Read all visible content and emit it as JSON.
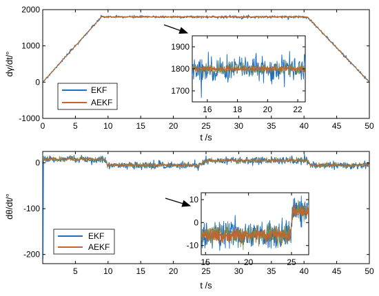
{
  "colors": {
    "ekf": "#1f6fc0",
    "aekf": "#c8612a",
    "noise_band": "#7a8a48",
    "axis": "#000000"
  },
  "chart_data": [
    {
      "type": "line",
      "ylabel": "dγ/dt/°",
      "xlabel": "t /s",
      "xlim": [
        0,
        50
      ],
      "ylim": [
        -1000,
        2000
      ],
      "xticks": [
        0,
        5,
        10,
        15,
        20,
        25,
        30,
        35,
        40,
        45,
        50
      ],
      "yticks": [
        -1000,
        0,
        1000,
        2000
      ],
      "grid": false,
      "legend_position": "bottom-left",
      "series": [
        {
          "name": "EKF",
          "x": [
            0,
            9,
            40.5,
            50
          ],
          "y": [
            0,
            1800,
            1800,
            0
          ],
          "noise_sd": 18
        },
        {
          "name": "AEKF",
          "x": [
            0,
            9,
            40.5,
            50
          ],
          "y": [
            0,
            1800,
            1800,
            0
          ],
          "noise_sd": 6
        }
      ],
      "inset": {
        "xlim": [
          15,
          22.5
        ],
        "ylim": [
          1650,
          1950
        ],
        "xticks": [
          16,
          18,
          20,
          22
        ],
        "yticks": [
          1700,
          1800,
          1900
        ],
        "level": 1800,
        "ekf_noise_sd": 28,
        "aekf_noise_sd": 7,
        "spike": {
          "x": 15.6,
          "y": 1670
        }
      }
    },
    {
      "type": "line",
      "ylabel": "dθ/dt/°",
      "xlabel": "t /s",
      "xlim": [
        0,
        50
      ],
      "ylim": [
        -220,
        25
      ],
      "xticks": [
        5,
        10,
        15,
        20,
        25,
        30,
        35,
        40,
        45,
        50
      ],
      "yticks": [
        -200,
        -100,
        0
      ],
      "grid": false,
      "legend_position": "bottom-left",
      "series": [
        {
          "name": "EKF",
          "x": [
            0,
            9.5,
            10,
            24,
            25,
            40.5,
            41,
            50
          ],
          "y": [
            8,
            8,
            -5,
            -5,
            5,
            5,
            -5,
            -5
          ],
          "noise_sd": 4
        },
        {
          "name": "AEKF",
          "x": [
            0,
            9.5,
            10,
            24,
            25,
            40.5,
            41,
            50
          ],
          "y": [
            8,
            8,
            -5,
            -5,
            5,
            5,
            -5,
            -5
          ],
          "noise_sd": 1.5
        }
      ],
      "inset": {
        "xlim": [
          14.5,
          27
        ],
        "ylim": [
          -14,
          13
        ],
        "xticks": [
          15,
          20,
          25
        ],
        "yticks": [
          -10,
          0,
          10
        ],
        "level_before": -5.5,
        "level_after": 5,
        "step_x": 24.8,
        "ekf_noise_sd": 3.2,
        "aekf_noise_sd": 1.3
      }
    }
  ]
}
